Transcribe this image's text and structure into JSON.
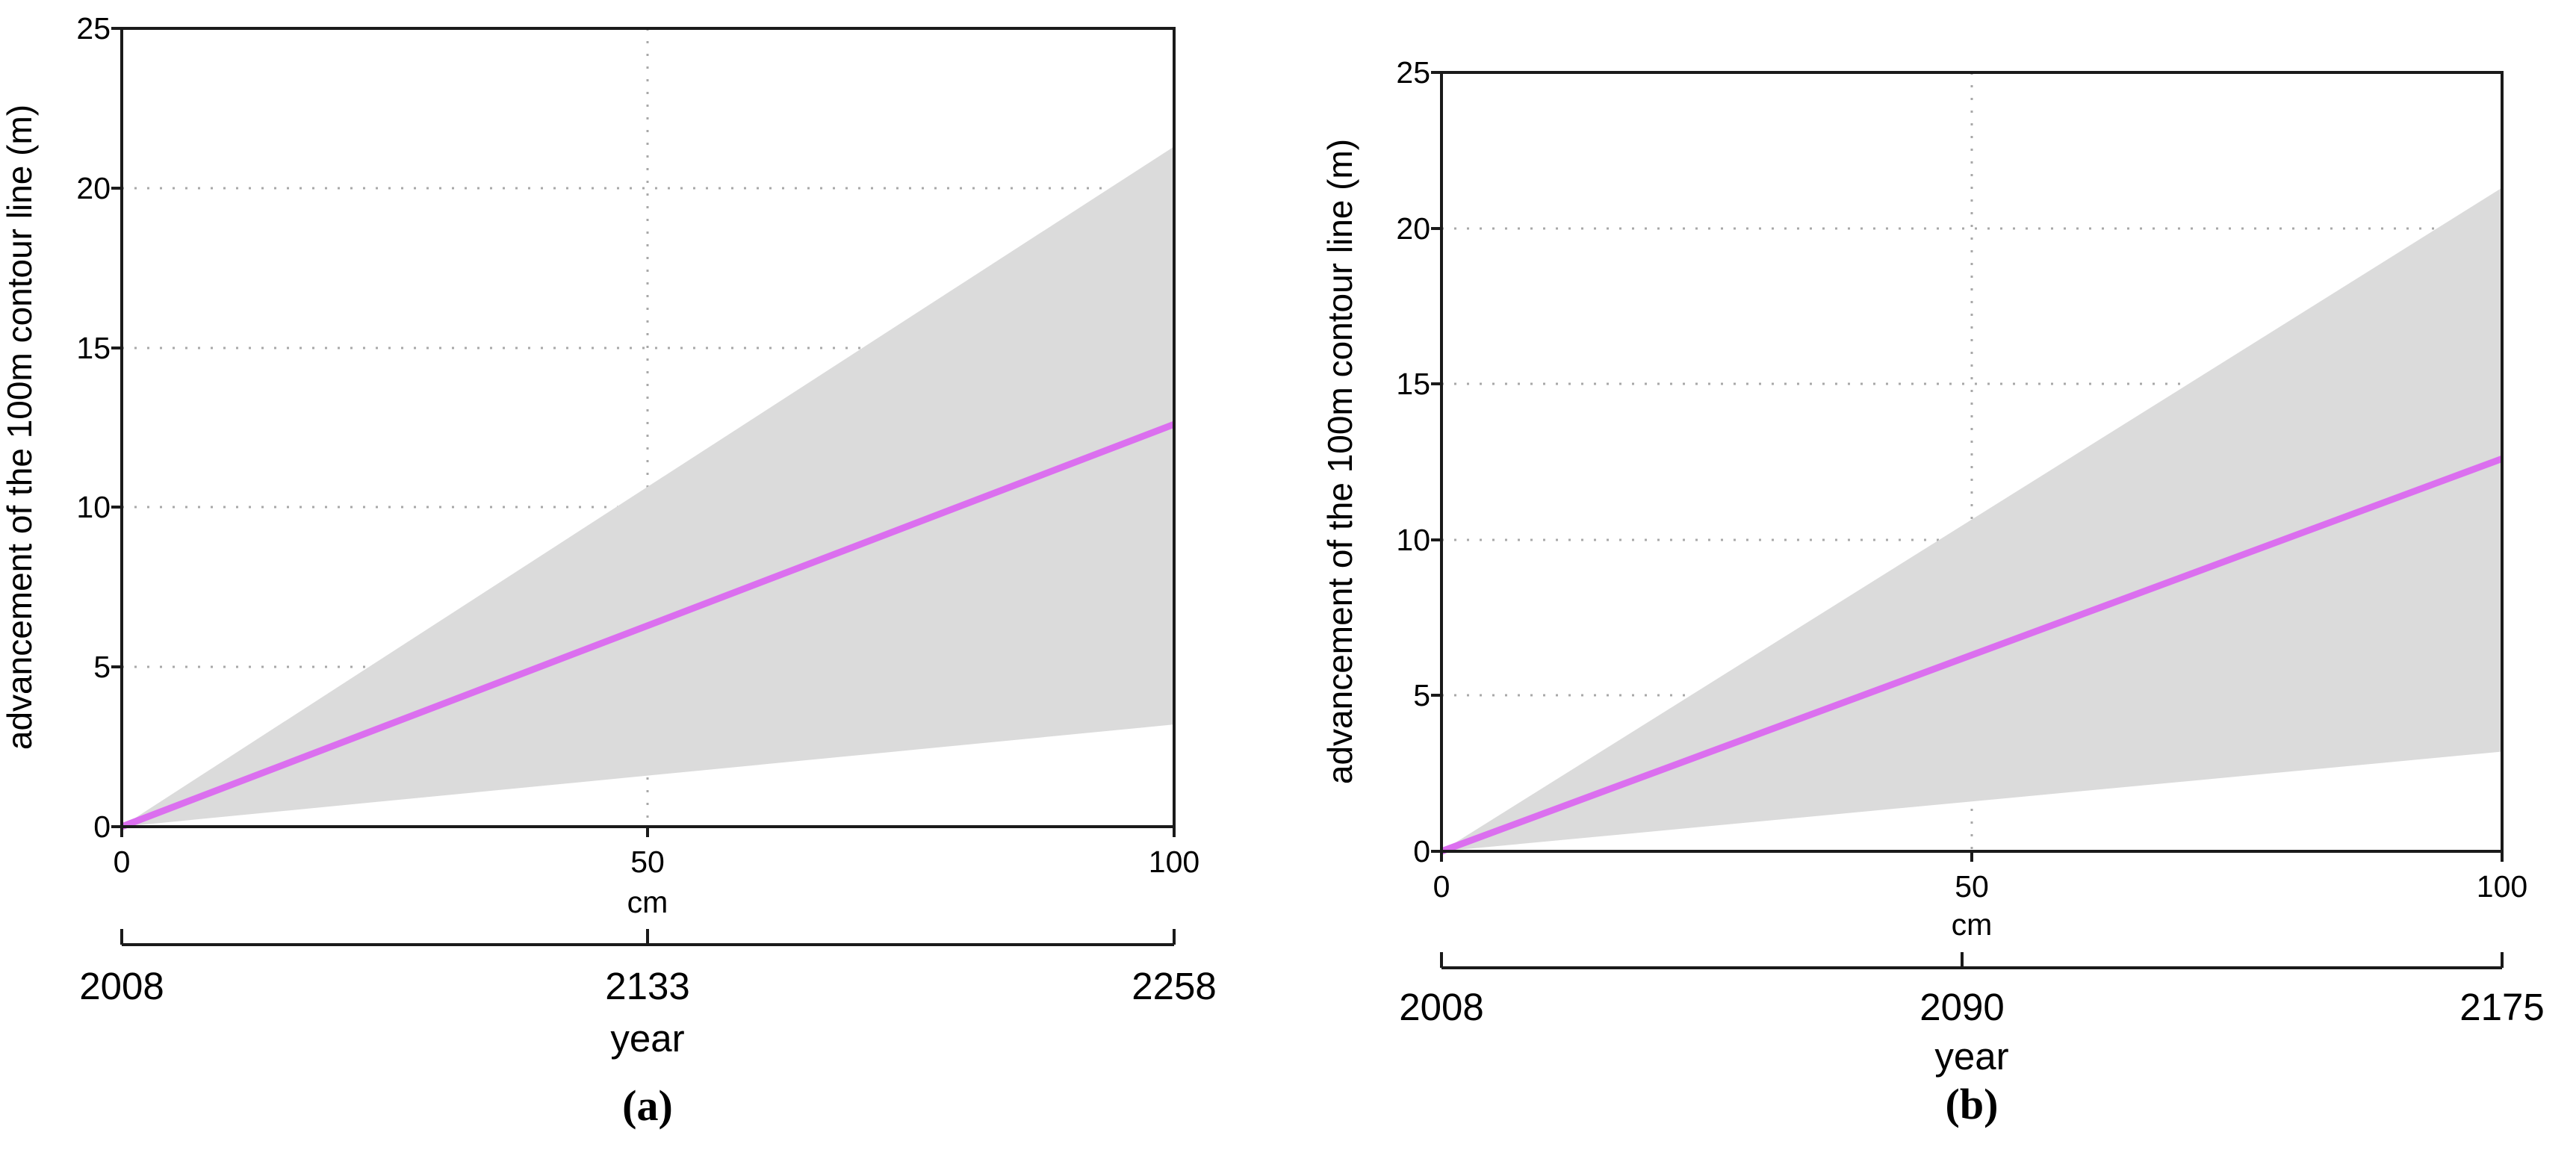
{
  "figure": {
    "background": "#ffffff",
    "line_color": "#db6fef",
    "band_color": "#dbdbdb"
  },
  "panel_a": {
    "caption": "(a)",
    "y_axis_title": "advancement of the 100m contour line (m)",
    "x_axis_title": "cm",
    "year_axis_title": "year",
    "y_ticks": [
      "0",
      "5",
      "10",
      "15",
      "20",
      "25"
    ],
    "x_ticks": [
      "0",
      "50",
      "100"
    ],
    "year_ticks": [
      "2008",
      "2133",
      "2258"
    ]
  },
  "panel_b": {
    "caption": "(b)",
    "y_axis_title": "advancement of the 100m contour line (m)",
    "x_axis_title": "cm",
    "year_axis_title": "year",
    "y_ticks": [
      "0",
      "5",
      "10",
      "15",
      "20",
      "25"
    ],
    "x_ticks": [
      "0",
      "50",
      "100"
    ],
    "year_ticks": [
      "2008",
      "2090",
      "2175"
    ]
  },
  "chart_data": [
    {
      "type": "line",
      "panel": "a",
      "title": "",
      "xlabel": "cm",
      "xlabel_secondary": "year",
      "ylabel": "advancement of the 100m contour line (m)",
      "xlim": [
        0,
        100
      ],
      "ylim": [
        0,
        25
      ],
      "x_tick_values": [
        0,
        50,
        100
      ],
      "y_tick_values": [
        0,
        5,
        10,
        15,
        20,
        25
      ],
      "year_tick_values": [
        2008,
        2133,
        2258
      ],
      "year_range": [
        2008,
        2258
      ],
      "grid": true,
      "legend": "none",
      "x": [
        0,
        100
      ],
      "series": [
        {
          "name": "median advancement",
          "values": [
            0,
            12.6
          ],
          "color": "#db6fef",
          "style": "solid-line"
        },
        {
          "name": "uncertainty band upper bound",
          "values": [
            0,
            21.3
          ],
          "color": "#dbdbdb",
          "style": "band-edge"
        },
        {
          "name": "uncertainty band lower bound",
          "values": [
            0,
            3.2
          ],
          "color": "#dbdbdb",
          "style": "band-edge"
        }
      ]
    },
    {
      "type": "line",
      "panel": "b",
      "title": "",
      "xlabel": "cm",
      "xlabel_secondary": "year",
      "ylabel": "advancement of the 100m contour line (m)",
      "xlim": [
        0,
        100
      ],
      "ylim": [
        0,
        25
      ],
      "x_tick_values": [
        0,
        50,
        100
      ],
      "y_tick_values": [
        0,
        5,
        10,
        15,
        20,
        25
      ],
      "year_tick_values": [
        2008,
        2090,
        2175
      ],
      "year_range": [
        2008,
        2175
      ],
      "grid": true,
      "legend": "none",
      "x": [
        0,
        100
      ],
      "series": [
        {
          "name": "median advancement",
          "values": [
            0,
            12.6
          ],
          "color": "#db6fef",
          "style": "solid-line"
        },
        {
          "name": "uncertainty band upper bound",
          "values": [
            0,
            21.3
          ],
          "color": "#dbdbdb",
          "style": "band-edge"
        },
        {
          "name": "uncertainty band lower bound",
          "values": [
            0,
            3.2
          ],
          "color": "#dbdbdb",
          "style": "band-edge"
        }
      ]
    }
  ]
}
